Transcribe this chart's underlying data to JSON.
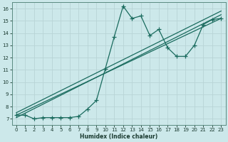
{
  "bg_color": "#cce8ea",
  "grid_color": "#b8d4d6",
  "line_color": "#1a6b5e",
  "xlabel": "Humidex (Indice chaleur)",
  "ylim": [
    6.5,
    16.5
  ],
  "xlim": [
    -0.5,
    23.5
  ],
  "yticks": [
    7,
    8,
    9,
    10,
    11,
    12,
    13,
    14,
    15,
    16
  ],
  "xticks": [
    0,
    1,
    2,
    3,
    4,
    5,
    6,
    7,
    8,
    9,
    10,
    11,
    12,
    13,
    14,
    15,
    16,
    17,
    18,
    19,
    20,
    21,
    22,
    23
  ],
  "series1_x": [
    0,
    1,
    2,
    3,
    4,
    5,
    6,
    7,
    8,
    9,
    10,
    11,
    12,
    13,
    14,
    15,
    16,
    17,
    18,
    19,
    20,
    21,
    22,
    23
  ],
  "series1_y": [
    7.3,
    7.3,
    7.0,
    7.1,
    7.1,
    7.1,
    7.1,
    7.2,
    7.8,
    8.5,
    11.1,
    13.7,
    16.2,
    15.2,
    15.4,
    13.8,
    14.3,
    12.8,
    12.1,
    12.1,
    13.0,
    14.7,
    15.1,
    15.2
  ],
  "trend1_x": [
    0,
    23
  ],
  "trend1_y": [
    7.3,
    15.2
  ],
  "trend2_x": [
    0,
    23
  ],
  "trend2_y": [
    7.1,
    15.5
  ],
  "trend3_x": [
    0,
    23
  ],
  "trend3_y": [
    7.5,
    15.8
  ]
}
